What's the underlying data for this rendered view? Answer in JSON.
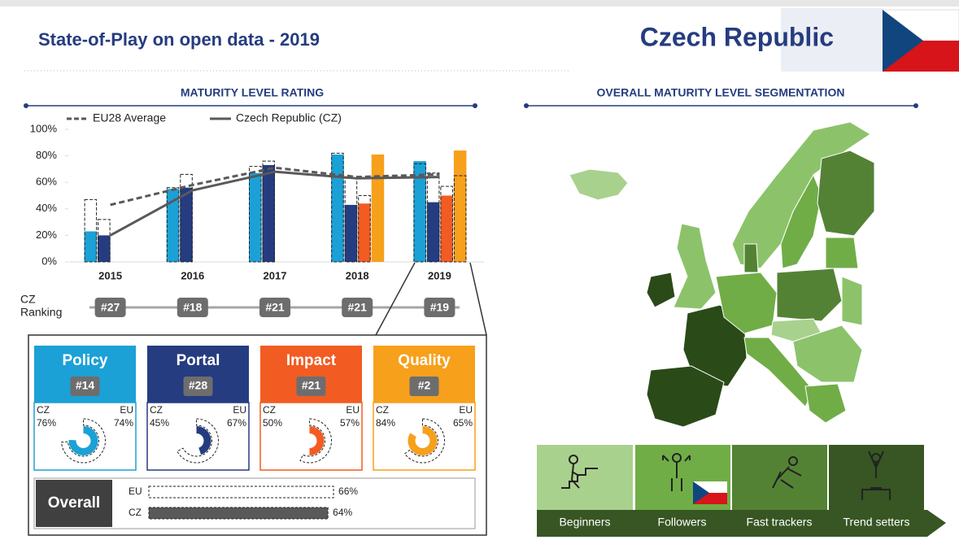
{
  "header": {
    "title": "State-of-Play on open data - 2019",
    "country": "Czech Republic"
  },
  "chart_data": {
    "type": "bar",
    "title": "MATURITY LEVEL RATING",
    "categories": [
      "2015",
      "2016",
      "2017",
      "2018",
      "2019"
    ],
    "ylim": [
      0,
      100
    ],
    "yticks": [
      {
        "value": 0,
        "label": "0%"
      },
      {
        "value": 20,
        "label": "20%"
      },
      {
        "value": 40,
        "label": "40%"
      },
      {
        "value": 60,
        "label": "60%"
      },
      {
        "value": 80,
        "label": "80%"
      },
      {
        "value": 100,
        "label": "100%"
      }
    ],
    "series": [
      {
        "name": "Policy",
        "type": "bar",
        "color": "#1ba1d6",
        "values": [
          23,
          55,
          67,
          81,
          76
        ],
        "eu_values": [
          47,
          56,
          72,
          82,
          74
        ]
      },
      {
        "name": "Portal",
        "type": "bar",
        "color": "#253c80",
        "values": [
          20,
          56,
          73,
          43,
          45
        ],
        "eu_values": [
          32,
          66,
          76,
          63,
          67
        ]
      },
      {
        "name": "Impact",
        "type": "bar",
        "color": "#f25c23",
        "values": [
          null,
          null,
          null,
          44,
          50
        ],
        "eu_values": [
          null,
          null,
          null,
          50,
          57
        ]
      },
      {
        "name": "Quality",
        "type": "bar",
        "color": "#f7a01b",
        "values": [
          null,
          null,
          null,
          81,
          84
        ],
        "eu_values": [
          null,
          null,
          null,
          null,
          65
        ]
      },
      {
        "name": "EU28 Average",
        "type": "line",
        "color": "#595959",
        "dashed": true,
        "values": [
          43,
          58,
          71,
          64,
          66
        ]
      },
      {
        "name": "Czech Republic (CZ)",
        "type": "line",
        "color": "#595959",
        "dashed": false,
        "values": [
          20,
          54,
          68,
          63,
          64
        ]
      }
    ],
    "ranking_label": [
      "CZ",
      "Ranking"
    ],
    "rankings": [
      "#27",
      "#18",
      "#21",
      "#21",
      "#19"
    ]
  },
  "cards": [
    {
      "rank": "#14",
      "cz_label": "76%",
      "eu_label": "74%"
    },
    {
      "rank": "#28",
      "cz_label": "45%",
      "eu_label": "67%"
    },
    {
      "rank": "#21",
      "cz_label": "50%",
      "eu_label": "57%"
    },
    {
      "rank": "#2",
      "cz_label": "84%",
      "eu_label": "65%"
    }
  ],
  "overall": {
    "label": "Overall",
    "series": [
      {
        "name": "EU",
        "value_label": "66%"
      },
      {
        "name": "CZ",
        "value_label": "64%"
      }
    ]
  },
  "segmentation": {
    "title": "OVERALL MATURITY LEVEL SEGMENTATION",
    "segments": [
      "Beginners",
      "Followers",
      "Fast trackers",
      "Trend setters"
    ]
  }
}
